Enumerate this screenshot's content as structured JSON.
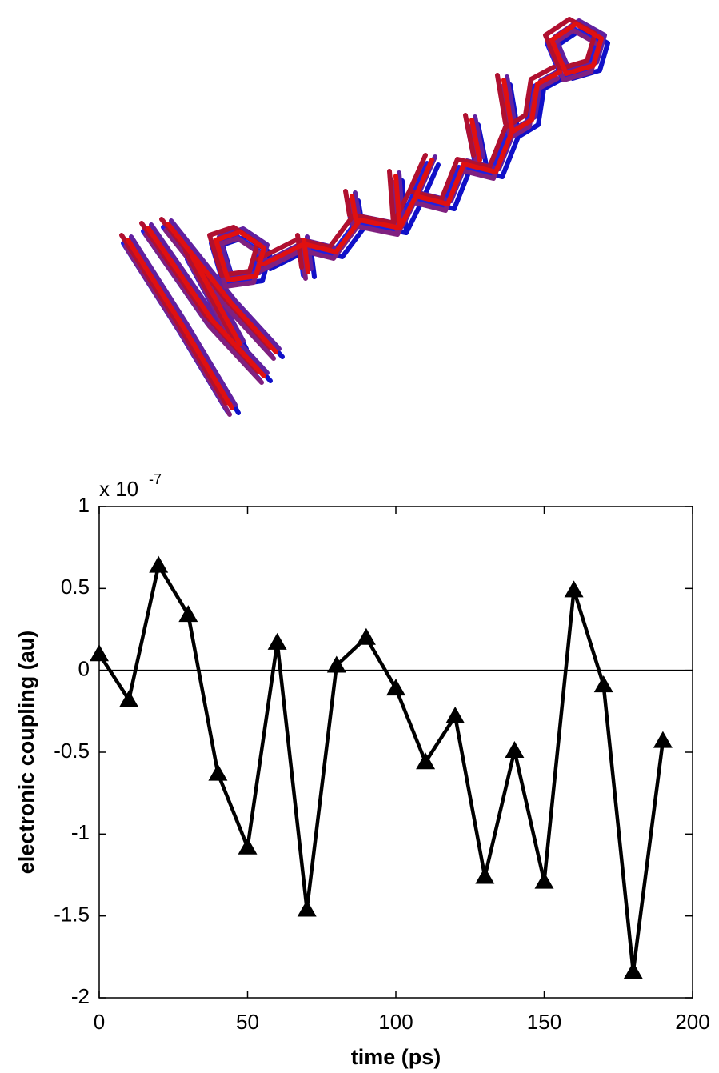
{
  "chart_data": {
    "type": "line",
    "x_label": "time (ps)",
    "y_label": "electronic coupling (au)",
    "y_multiplier": "x 10",
    "y_multiplier_exponent": "-7",
    "x": [
      0,
      10,
      20,
      30,
      40,
      50,
      60,
      70,
      80,
      90,
      100,
      110,
      120,
      130,
      140,
      150,
      160,
      170,
      180,
      190
    ],
    "series": [
      {
        "color": "#000000",
        "marker": "triangle",
        "values": [
          0.1,
          -0.18,
          0.64,
          0.34,
          -0.63,
          -1.08,
          0.17,
          -1.46,
          0.03,
          0.2,
          -0.11,
          -0.56,
          -0.28,
          -1.26,
          -0.49,
          -1.29,
          0.49,
          -0.09,
          -1.84,
          -0.43
        ]
      }
    ],
    "xlim": [
      0,
      200
    ],
    "xticks": [
      0,
      50,
      100,
      150,
      200
    ],
    "ylim": [
      -2,
      1
    ],
    "yticks": [
      -2,
      -1.5,
      -1,
      -0.5,
      0,
      0.5,
      1
    ],
    "zero_line": true,
    "grid": false
  }
}
